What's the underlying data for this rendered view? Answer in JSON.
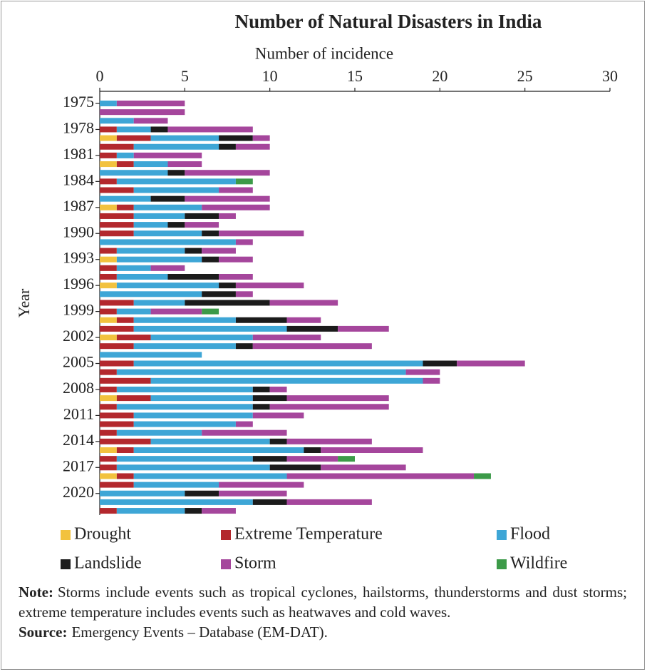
{
  "chart_data": {
    "type": "stacked-barh",
    "title": "Number of Natural Disasters in India",
    "x_label": "Number of incidence",
    "y_label": "Year",
    "categories": [
      "1975",
      null,
      null,
      "1978",
      null,
      null,
      "1981",
      null,
      null,
      "1984",
      null,
      null,
      "1987",
      null,
      null,
      "1990",
      null,
      null,
      "1993",
      null,
      null,
      "1996",
      null,
      null,
      "1999",
      null,
      null,
      "2002",
      null,
      null,
      "2005",
      null,
      null,
      "2008",
      null,
      null,
      "2011",
      null,
      null,
      "2014",
      null,
      null,
      "2017",
      null,
      null,
      "2020",
      null,
      null
    ],
    "xlim": [
      0,
      30
    ],
    "xticks": [
      0,
      5,
      10,
      15,
      20,
      25,
      30
    ],
    "series": [
      {
        "name": "Drought",
        "color": "#f2c23e",
        "values": [
          0,
          0,
          0,
          0,
          1,
          0,
          0,
          1,
          0,
          0,
          0,
          0,
          1,
          0,
          0,
          0,
          0,
          0,
          1,
          0,
          0,
          1,
          0,
          0,
          0,
          1,
          0,
          1,
          0,
          0,
          0,
          0,
          0,
          0,
          1,
          0,
          0,
          0,
          0,
          0,
          1,
          0,
          0,
          1,
          0,
          0,
          0,
          0
        ]
      },
      {
        "name": "Extreme Temperature",
        "color": "#b3282d",
        "values": [
          0,
          0,
          0,
          1,
          2,
          2,
          1,
          1,
          0,
          1,
          2,
          0,
          1,
          2,
          2,
          2,
          0,
          1,
          0,
          1,
          1,
          0,
          0,
          2,
          1,
          1,
          2,
          2,
          2,
          0,
          2,
          1,
          3,
          1,
          2,
          1,
          2,
          2,
          1,
          3,
          1,
          1,
          1,
          1,
          2,
          0,
          0,
          1
        ]
      },
      {
        "name": "Flood",
        "color": "#3ea6d6",
        "values": [
          1,
          0,
          2,
          2,
          4,
          5,
          1,
          2,
          4,
          7,
          5,
          3,
          4,
          3,
          2,
          4,
          8,
          4,
          5,
          2,
          3,
          6,
          6,
          3,
          2,
          6,
          9,
          6,
          6,
          6,
          17,
          17,
          16,
          8,
          6,
          8,
          7,
          6,
          5,
          7,
          10,
          8,
          9,
          9,
          5,
          5,
          9,
          4
        ]
      },
      {
        "name": "Landslide",
        "color": "#1b1b1b",
        "values": [
          0,
          0,
          0,
          1,
          2,
          1,
          0,
          0,
          1,
          0,
          0,
          2,
          0,
          2,
          1,
          1,
          0,
          1,
          1,
          0,
          3,
          1,
          2,
          5,
          0,
          3,
          3,
          0,
          1,
          0,
          2,
          0,
          0,
          1,
          2,
          1,
          0,
          0,
          0,
          1,
          1,
          2,
          3,
          0,
          0,
          2,
          2,
          1
        ]
      },
      {
        "name": "Storm",
        "color": "#a5469c",
        "values": [
          4,
          5,
          2,
          5,
          1,
          2,
          4,
          2,
          5,
          0,
          2,
          5,
          4,
          1,
          2,
          5,
          1,
          2,
          2,
          2,
          2,
          4,
          1,
          4,
          3,
          2,
          3,
          4,
          7,
          0,
          4,
          2,
          1,
          1,
          6,
          7,
          3,
          1,
          5,
          5,
          6,
          3,
          5,
          11,
          5,
          4,
          5,
          2
        ]
      },
      {
        "name": "Wildfire",
        "color": "#3c9a48",
        "values": [
          0,
          0,
          0,
          0,
          0,
          0,
          0,
          0,
          0,
          1,
          0,
          0,
          0,
          0,
          0,
          0,
          0,
          0,
          0,
          0,
          0,
          0,
          0,
          0,
          1,
          0,
          0,
          0,
          0,
          0,
          0,
          0,
          0,
          0,
          0,
          0,
          0,
          0,
          0,
          0,
          0,
          1,
          0,
          1,
          0,
          0,
          0,
          0
        ]
      }
    ],
    "notes": [
      {
        "label": "Note:",
        "text": "Storms include events such as tropical cyclones, hailstorms, thunderstorms and dust storms; extreme temperature includes events such as heatwaves and cold waves."
      },
      {
        "label": "Source:",
        "text": "Emergency Events – Database (EM-DAT)."
      }
    ]
  }
}
